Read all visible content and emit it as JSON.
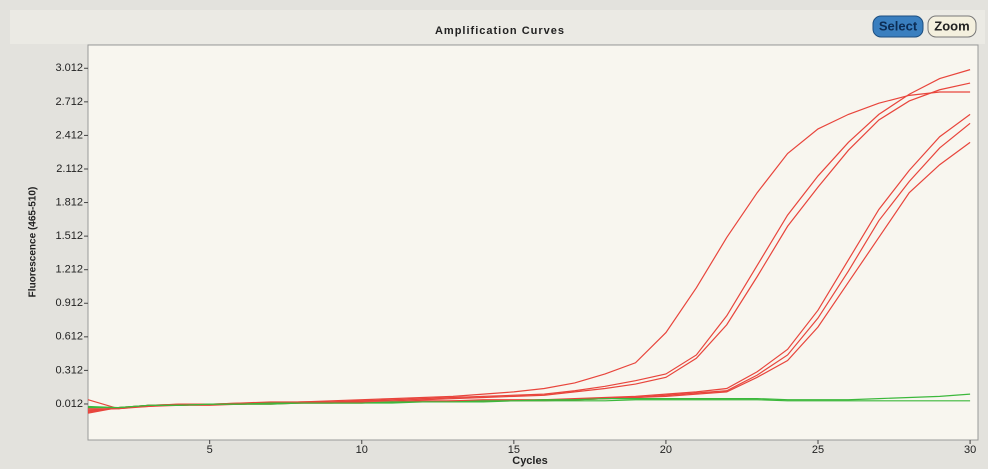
{
  "chart_data": {
    "type": "line",
    "title": "Amplification Curves",
    "xlabel": "Cycles",
    "ylabel": "Fluorescence (465-510)",
    "x": [
      1,
      2,
      3,
      4,
      5,
      6,
      7,
      8,
      9,
      10,
      11,
      12,
      13,
      14,
      15,
      16,
      17,
      18,
      19,
      20,
      21,
      22,
      23,
      24,
      25,
      26,
      27,
      28,
      29,
      30
    ],
    "xlim": [
      1,
      30.26
    ],
    "xticks": [
      5,
      10,
      15,
      20,
      25,
      30
    ],
    "ylim": [
      -0.31,
      3.22
    ],
    "yticks": [
      0.012,
      0.312,
      0.612,
      0.912,
      1.212,
      1.512,
      1.812,
      2.112,
      2.412,
      2.712,
      3.012
    ],
    "series": [
      {
        "color": "#e8453c",
        "values": [
          -0.05,
          -0.02,
          0,
          0.01,
          0.01,
          0.02,
          0.03,
          0.03,
          0.04,
          0.05,
          0.06,
          0.07,
          0.08,
          0.1,
          0.12,
          0.15,
          0.2,
          0.28,
          0.38,
          0.65,
          1.05,
          1.5,
          1.9,
          2.25,
          2.47,
          2.6,
          2.7,
          2.77,
          2.8,
          2.8
        ]
      },
      {
        "color": "#e8453c",
        "values": [
          0.05,
          -0.03,
          -0.01,
          0,
          0.01,
          0.01,
          0.02,
          0.03,
          0.03,
          0.04,
          0.05,
          0.06,
          0.07,
          0.08,
          0.09,
          0.1,
          0.13,
          0.17,
          0.22,
          0.28,
          0.45,
          0.8,
          1.25,
          1.7,
          2.05,
          2.35,
          2.6,
          2.78,
          2.92,
          3.0
        ]
      },
      {
        "color": "#e8453c",
        "values": [
          -0.07,
          -0.02,
          0,
          0.01,
          0.01,
          0.02,
          0.02,
          0.03,
          0.03,
          0.04,
          0.04,
          0.05,
          0.06,
          0.07,
          0.08,
          0.09,
          0.12,
          0.15,
          0.19,
          0.25,
          0.42,
          0.72,
          1.15,
          1.6,
          1.95,
          2.28,
          2.55,
          2.72,
          2.82,
          2.88
        ]
      },
      {
        "color": "#e8453c",
        "values": [
          -0.04,
          -0.03,
          0,
          0,
          0.01,
          0.01,
          0.02,
          0.02,
          0.03,
          0.03,
          0.03,
          0.04,
          0.04,
          0.05,
          0.05,
          0.05,
          0.06,
          0.07,
          0.08,
          0.1,
          0.12,
          0.15,
          0.3,
          0.5,
          0.85,
          1.3,
          1.75,
          2.1,
          2.4,
          2.6
        ]
      },
      {
        "color": "#e8453c",
        "values": [
          -0.06,
          -0.02,
          -0.01,
          0.01,
          0.01,
          0.01,
          0.02,
          0.02,
          0.02,
          0.03,
          0.03,
          0.03,
          0.04,
          0.04,
          0.04,
          0.05,
          0.05,
          0.06,
          0.07,
          0.09,
          0.11,
          0.13,
          0.27,
          0.45,
          0.78,
          1.2,
          1.65,
          2.0,
          2.3,
          2.52
        ]
      },
      {
        "color": "#e8453c",
        "values": [
          -0.03,
          -0.03,
          0,
          0,
          0,
          0.01,
          0.01,
          0.02,
          0.02,
          0.02,
          0.03,
          0.03,
          0.03,
          0.04,
          0.04,
          0.04,
          0.05,
          0.06,
          0.07,
          0.08,
          0.1,
          0.12,
          0.25,
          0.4,
          0.7,
          1.1,
          1.5,
          1.9,
          2.15,
          2.35
        ]
      },
      {
        "color": "#3cb83c",
        "values": [
          -0.02,
          -0.02,
          0,
          0,
          0.01,
          0.01,
          0.02,
          0.02,
          0.02,
          0.02,
          0.03,
          0.03,
          0.03,
          0.04,
          0.04,
          0.05,
          0.05,
          0.06,
          0.06,
          0.06,
          0.06,
          0.06,
          0.06,
          0.05,
          0.05,
          0.05,
          0.06,
          0.07,
          0.08,
          0.1
        ]
      },
      {
        "color": "#3cb83c",
        "values": [
          -0.01,
          -0.02,
          0,
          0,
          0.01,
          0.01,
          0.01,
          0.02,
          0.02,
          0.02,
          0.02,
          0.03,
          0.03,
          0.03,
          0.04,
          0.04,
          0.04,
          0.04,
          0.05,
          0.05,
          0.05,
          0.05,
          0.05,
          0.04,
          0.04,
          0.04,
          0.04,
          0.04,
          0.04,
          0.04
        ]
      }
    ]
  },
  "toolbar": {
    "buttons": [
      "Select",
      "Zoom"
    ]
  }
}
